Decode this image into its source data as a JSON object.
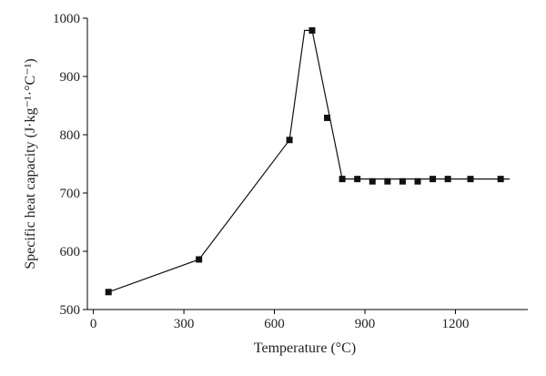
{
  "chart_data": {
    "type": "line",
    "xlabel": "Temperature (°C)",
    "ylabel": "Specific heat capacity (J·kg⁻¹·°C⁻¹)",
    "xlim": [
      -20,
      1440
    ],
    "ylim": [
      500,
      1000
    ],
    "xticks": [
      0,
      300,
      600,
      900,
      1200
    ],
    "yticks": [
      500,
      600,
      700,
      800,
      900,
      1000
    ],
    "grid": false,
    "colors": {
      "series": "#111111"
    },
    "series": [
      {
        "x": [
          50,
          350,
          650,
          725,
          775,
          825,
          875,
          925,
          975,
          1025,
          1075,
          1125,
          1175,
          1250,
          1350
        ],
        "y": [
          530,
          586,
          791,
          979,
          829,
          724,
          724,
          720,
          720,
          720,
          720,
          724,
          724,
          724,
          724
        ],
        "marker": "square",
        "line_path": {
          "x": [
            50,
            350,
            650,
            700,
            725,
            825,
            1380
          ],
          "y": [
            530,
            586,
            791,
            979,
            979,
            724,
            724
          ]
        }
      }
    ]
  }
}
